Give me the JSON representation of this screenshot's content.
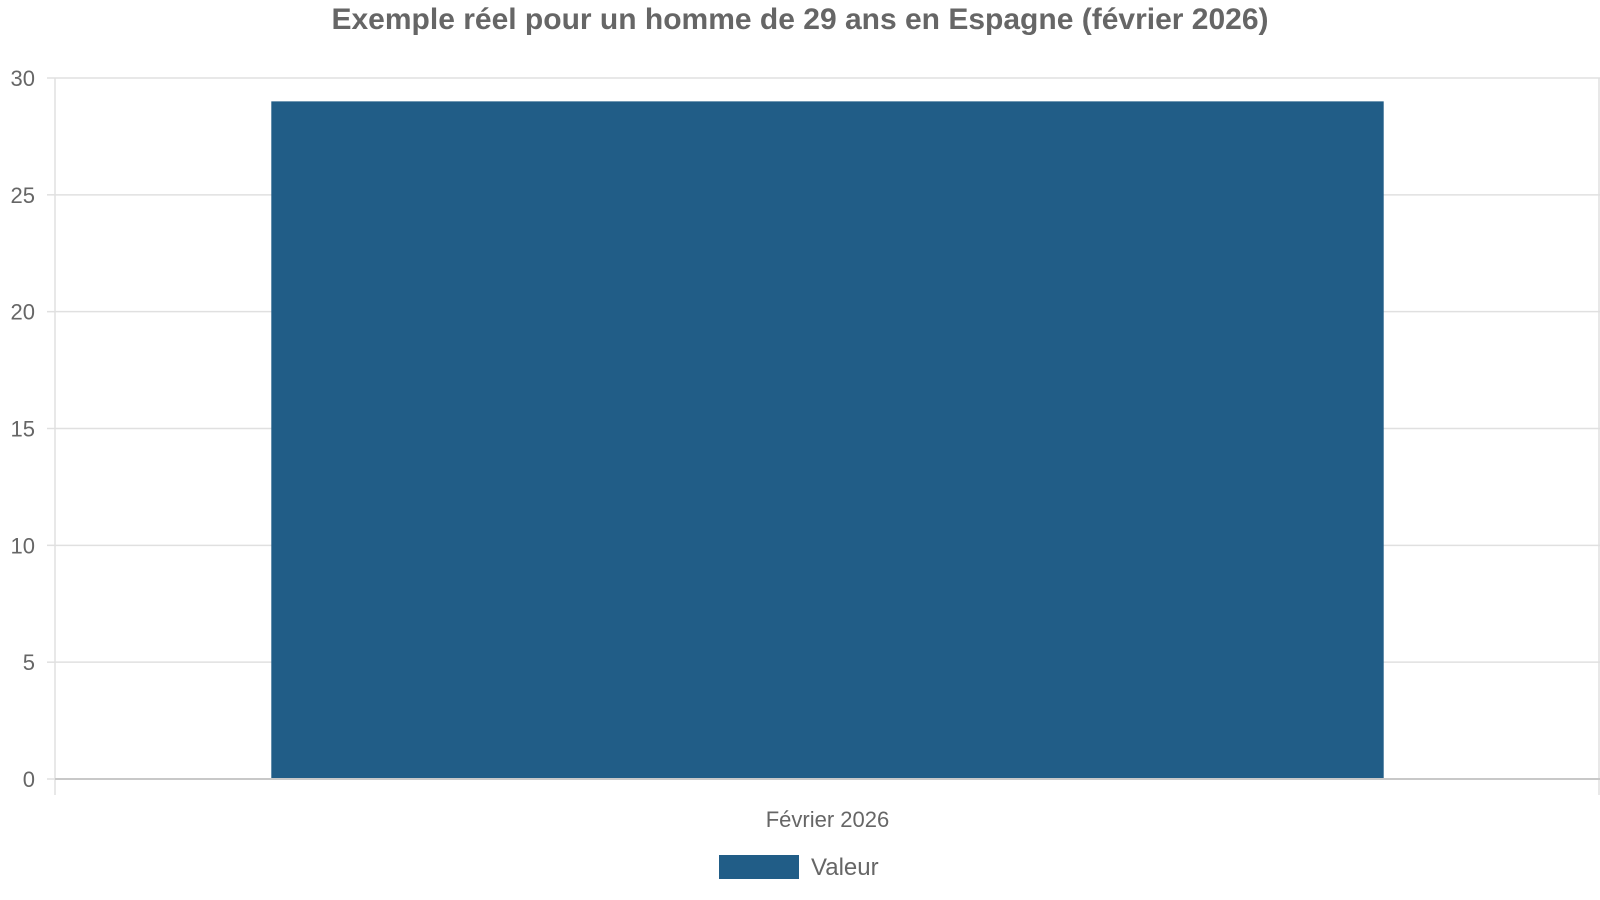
{
  "chart_data": {
    "type": "bar",
    "title": "Exemple réel pour un homme de 29 ans en Espagne (février 2026)",
    "categories": [
      "Février 2026"
    ],
    "series": [
      {
        "name": "Valeur",
        "values": [
          29
        ]
      }
    ],
    "xlabel": "",
    "ylabel": "",
    "ylim": [
      0,
      30
    ],
    "yticks": [
      0,
      5,
      10,
      15,
      20,
      25,
      30
    ],
    "grid": true,
    "legend": "bottom"
  },
  "colors": {
    "bar": "#215d87",
    "grid": "#e0e0e0",
    "axis": "#c8c8c8",
    "text": "#666666"
  }
}
